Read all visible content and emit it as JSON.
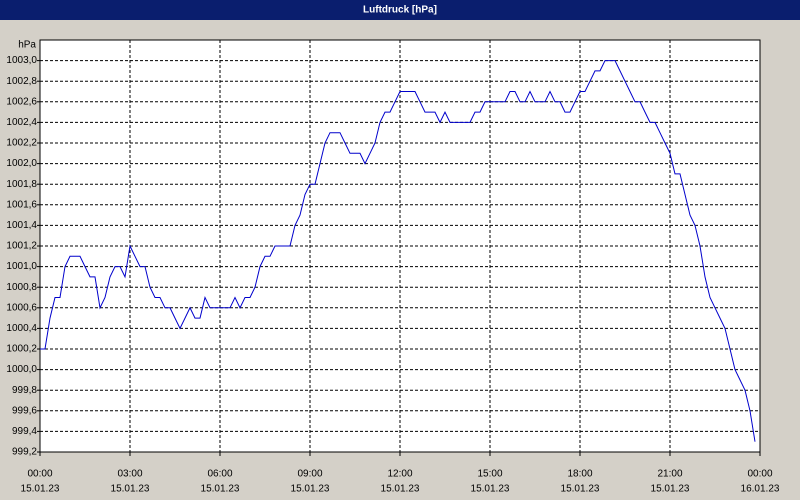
{
  "chart_data": {
    "type": "line",
    "title": "Luftdruck [hPa]",
    "y_label": "hPa",
    "x": [
      0,
      10,
      20,
      30,
      40,
      50,
      60,
      70,
      80,
      90,
      100,
      110,
      120,
      130,
      140,
      150,
      160,
      170,
      180,
      190,
      200,
      210,
      220,
      230,
      240,
      250,
      260,
      270,
      280,
      290,
      300,
      310,
      320,
      330,
      340,
      350,
      360,
      370,
      380,
      390,
      400,
      410,
      420,
      430,
      440,
      450,
      460,
      470,
      480,
      490,
      500,
      510,
      520,
      530,
      540,
      550,
      560,
      570,
      580,
      590,
      600,
      610,
      620,
      630,
      640,
      650,
      660,
      670,
      680,
      690,
      700,
      710,
      720,
      730,
      740,
      750,
      760,
      770,
      780,
      790,
      800,
      810,
      820,
      830,
      840,
      850,
      860,
      870,
      880,
      890,
      900,
      910,
      920,
      930,
      940,
      950,
      960,
      970,
      980,
      990,
      1000,
      1010,
      1020,
      1030,
      1040,
      1050,
      1060,
      1070,
      1080,
      1090,
      1100,
      1110,
      1120,
      1130,
      1140,
      1150,
      1160,
      1170,
      1180,
      1190,
      1200,
      1210,
      1220,
      1230,
      1240,
      1250,
      1260,
      1270,
      1280,
      1290,
      1300,
      1310,
      1320,
      1330,
      1340,
      1350,
      1360,
      1370,
      1380,
      1390,
      1400,
      1410,
      1420,
      1430
    ],
    "series": [
      {
        "color": "#0000cc",
        "values": [
          1000.2,
          1000.2,
          1000.5,
          1000.7,
          1000.7,
          1001.0,
          1001.1,
          1001.1,
          1001.1,
          1001.0,
          1000.9,
          1000.9,
          1000.6,
          1000.7,
          1000.9,
          1001.0,
          1001.0,
          1000.9,
          1001.2,
          1001.1,
          1001.0,
          1001.0,
          1000.8,
          1000.7,
          1000.7,
          1000.6,
          1000.6,
          1000.5,
          1000.4,
          1000.5,
          1000.6,
          1000.5,
          1000.5,
          1000.7,
          1000.6,
          1000.6,
          1000.6,
          1000.6,
          1000.6,
          1000.7,
          1000.6,
          1000.7,
          1000.7,
          1000.8,
          1001.0,
          1001.1,
          1001.1,
          1001.2,
          1001.2,
          1001.2,
          1001.2,
          1001.4,
          1001.5,
          1001.7,
          1001.8,
          1001.8,
          1002.0,
          1002.2,
          1002.3,
          1002.3,
          1002.3,
          1002.2,
          1002.1,
          1002.1,
          1002.1,
          1002.0,
          1002.1,
          1002.2,
          1002.4,
          1002.5,
          1002.5,
          1002.6,
          1002.7,
          1002.7,
          1002.7,
          1002.7,
          1002.6,
          1002.5,
          1002.5,
          1002.5,
          1002.4,
          1002.5,
          1002.4,
          1002.4,
          1002.4,
          1002.4,
          1002.4,
          1002.5,
          1002.5,
          1002.6,
          1002.6,
          1002.6,
          1002.6,
          1002.6,
          1002.7,
          1002.7,
          1002.6,
          1002.6,
          1002.7,
          1002.6,
          1002.6,
          1002.6,
          1002.7,
          1002.6,
          1002.6,
          1002.5,
          1002.5,
          1002.6,
          1002.7,
          1002.7,
          1002.8,
          1002.9,
          1002.9,
          1003.0,
          1003.0,
          1003.0,
          1002.9,
          1002.8,
          1002.7,
          1002.6,
          1002.6,
          1002.5,
          1002.4,
          1002.4,
          1002.3,
          1002.2,
          1002.1,
          1001.9,
          1001.9,
          1001.7,
          1001.5,
          1001.4,
          1001.2,
          1000.9,
          1000.7,
          1000.6,
          1000.5,
          1000.4,
          1000.2,
          1000.0,
          999.9,
          999.8,
          999.6,
          999.3
        ]
      }
    ],
    "xlim": [
      0,
      1440
    ],
    "xticks": [
      {
        "value": 0,
        "label": "00:00",
        "date": "15.01.23"
      },
      {
        "value": 180,
        "label": "03:00",
        "date": "15.01.23"
      },
      {
        "value": 360,
        "label": "06:00",
        "date": "15.01.23"
      },
      {
        "value": 540,
        "label": "09:00",
        "date": "15.01.23"
      },
      {
        "value": 720,
        "label": "12:00",
        "date": "15.01.23"
      },
      {
        "value": 900,
        "label": "15:00",
        "date": "15.01.23"
      },
      {
        "value": 1080,
        "label": "18:00",
        "date": "15.01.23"
      },
      {
        "value": 1260,
        "label": "21:00",
        "date": "15.01.23"
      },
      {
        "value": 1440,
        "label": "00:00",
        "date": "16.01.23"
      }
    ],
    "ylim": [
      999.2,
      1003.2
    ],
    "yticks": [
      {
        "value": 999.2,
        "label": "999,2"
      },
      {
        "value": 999.4,
        "label": "999,4"
      },
      {
        "value": 999.6,
        "label": "999,6"
      },
      {
        "value": 999.8,
        "label": "999,8"
      },
      {
        "value": 1000.0,
        "label": "1000,0"
      },
      {
        "value": 1000.2,
        "label": "1000,2"
      },
      {
        "value": 1000.4,
        "label": "1000,4"
      },
      {
        "value": 1000.6,
        "label": "1000,6"
      },
      {
        "value": 1000.8,
        "label": "1000,8"
      },
      {
        "value": 1001.0,
        "label": "1001,0"
      },
      {
        "value": 1001.2,
        "label": "1001,2"
      },
      {
        "value": 1001.4,
        "label": "1001,4"
      },
      {
        "value": 1001.6,
        "label": "1001,6"
      },
      {
        "value": 1001.8,
        "label": "1001,8"
      },
      {
        "value": 1002.0,
        "label": "1002,0"
      },
      {
        "value": 1002.2,
        "label": "1002,2"
      },
      {
        "value": 1002.4,
        "label": "1002,4"
      },
      {
        "value": 1002.6,
        "label": "1002,6"
      },
      {
        "value": 1002.8,
        "label": "1002,8"
      },
      {
        "value": 1003.0,
        "label": "1003,0"
      }
    ],
    "grid": true
  }
}
